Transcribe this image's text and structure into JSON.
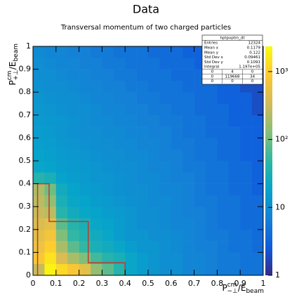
{
  "chart_data": {
    "type": "heatmap",
    "title": "Data",
    "subtitle": "Transversal momentum of two charged particles",
    "xlabel": [
      "P",
      "cm",
      "−⊥",
      "/E",
      "beam"
    ],
    "ylabel": [
      "P",
      "cm",
      "+⊥",
      "/E",
      "beam"
    ],
    "xlim": [
      0,
      1
    ],
    "ylim": [
      0,
      1
    ],
    "xticks": [
      0,
      0.1,
      0.2,
      0.3,
      0.4,
      0.5,
      0.6,
      0.7,
      0.8,
      0.9,
      1
    ],
    "yticks": [
      0,
      0.1,
      0.2,
      0.3,
      0.4,
      0.5,
      0.6,
      0.7,
      0.8,
      0.9,
      1
    ],
    "zlim": [
      1,
      2350
    ],
    "zlog": true,
    "zticks": [
      1,
      10,
      {
        "value": 100,
        "label": "10²"
      },
      {
        "value": 1000,
        "label": "10³"
      }
    ],
    "colorscale": [
      "#352a87",
      "#0f5cdd",
      "#1481d6",
      "#06a4ca",
      "#2eb7a4",
      "#87bf77",
      "#d1bb59",
      "#fec832",
      "#f9fb0e"
    ],
    "z": [
      [
        300,
        2000,
        1200,
        800,
        500,
        150,
        80,
        40,
        20,
        15,
        12,
        10,
        10,
        8,
        8,
        7,
        6,
        6,
        5,
        5
      ],
      [
        800,
        1500,
        400,
        200,
        120,
        60,
        40,
        30,
        20,
        15,
        12,
        10,
        10,
        8,
        8,
        7,
        6,
        6,
        5,
        5
      ],
      [
        600,
        1000,
        200,
        80,
        50,
        30,
        25,
        20,
        15,
        12,
        12,
        10,
        9,
        8,
        7,
        7,
        6,
        5,
        5,
        4
      ],
      [
        500,
        700,
        120,
        50,
        35,
        25,
        20,
        15,
        12,
        12,
        10,
        10,
        9,
        8,
        7,
        6,
        6,
        5,
        5,
        4
      ],
      [
        400,
        500,
        80,
        40,
        30,
        20,
        18,
        15,
        12,
        10,
        10,
        9,
        8,
        8,
        7,
        6,
        5,
        5,
        4,
        4
      ],
      [
        300,
        250,
        40,
        25,
        20,
        18,
        15,
        14,
        12,
        10,
        10,
        9,
        8,
        7,
        7,
        6,
        5,
        5,
        4,
        4
      ],
      [
        250,
        150,
        30,
        20,
        18,
        15,
        14,
        12,
        11,
        10,
        9,
        9,
        8,
        7,
        6,
        6,
        5,
        5,
        4,
        4
      ],
      [
        200,
        100,
        25,
        18,
        15,
        14,
        12,
        11,
        10,
        10,
        9,
        8,
        8,
        7,
        6,
        5,
        5,
        4,
        4,
        3
      ],
      [
        40,
        30,
        18,
        15,
        14,
        12,
        12,
        11,
        10,
        9,
        9,
        8,
        7,
        7,
        6,
        5,
        5,
        4,
        4,
        3
      ],
      [
        20,
        18,
        15,
        14,
        13,
        12,
        11,
        10,
        10,
        9,
        8,
        8,
        7,
        6,
        6,
        5,
        5,
        4,
        4,
        3
      ],
      [
        18,
        16,
        14,
        13,
        12,
        11,
        10,
        10,
        9,
        9,
        8,
        7,
        7,
        6,
        5,
        5,
        4,
        4,
        3,
        3
      ],
      [
        16,
        15,
        13,
        12,
        11,
        10,
        10,
        9,
        9,
        8,
        8,
        7,
        6,
        6,
        5,
        5,
        4,
        4,
        3,
        3
      ],
      [
        15,
        14,
        12,
        11,
        10,
        10,
        9,
        9,
        8,
        8,
        7,
        7,
        6,
        5,
        5,
        4,
        4,
        4,
        3,
        3
      ],
      [
        14,
        13,
        12,
        11,
        10,
        9,
        9,
        8,
        8,
        7,
        7,
        6,
        6,
        5,
        5,
        4,
        4,
        3,
        3,
        3
      ],
      [
        13,
        12,
        11,
        10,
        10,
        9,
        8,
        8,
        7,
        7,
        6,
        6,
        5,
        5,
        4,
        4,
        4,
        3,
        3,
        2
      ],
      [
        12,
        11,
        10,
        10,
        9,
        8,
        8,
        7,
        7,
        6,
        6,
        5,
        5,
        5,
        4,
        4,
        3,
        3,
        3,
        2
      ],
      [
        11,
        10,
        10,
        9,
        8,
        8,
        7,
        7,
        6,
        6,
        5,
        5,
        5,
        4,
        4,
        4,
        3,
        3,
        2,
        2
      ],
      [
        10,
        10,
        9,
        8,
        8,
        7,
        7,
        6,
        6,
        5,
        5,
        5,
        4,
        4,
        4,
        3,
        3,
        3,
        2,
        2
      ],
      [
        10,
        9,
        8,
        8,
        7,
        7,
        6,
        6,
        5,
        5,
        5,
        4,
        4,
        4,
        3,
        3,
        3,
        2,
        2,
        2
      ],
      [
        9,
        8,
        8,
        7,
        7,
        6,
        6,
        5,
        5,
        5,
        4,
        4,
        4,
        3,
        3,
        3,
        2,
        2,
        2,
        2
      ]
    ],
    "region": {
      "color": "#c0392b",
      "x": [
        0.02,
        0.02,
        0.07,
        0.07,
        0.24,
        0.24,
        0.4,
        0.4
      ],
      "y": [
        0,
        0.4,
        0.4,
        0.235,
        0.235,
        0.055,
        0.055,
        0
      ]
    },
    "stats": {
      "name": "hptpvptm_dt",
      "rows": [
        [
          "Entries",
          "12324"
        ],
        [
          "Mean x",
          "0.1179"
        ],
        [
          "Mean y",
          "0.122"
        ],
        [
          "Std Dev x",
          "0.09461"
        ],
        [
          "Std Dev y",
          "0.1091"
        ],
        [
          "Integral",
          "1.197e+05"
        ]
      ],
      "grid": [
        [
          "0",
          "4",
          "0"
        ],
        [
          "0",
          "119668",
          "34"
        ],
        [
          "0",
          "0",
          "0"
        ]
      ]
    }
  }
}
